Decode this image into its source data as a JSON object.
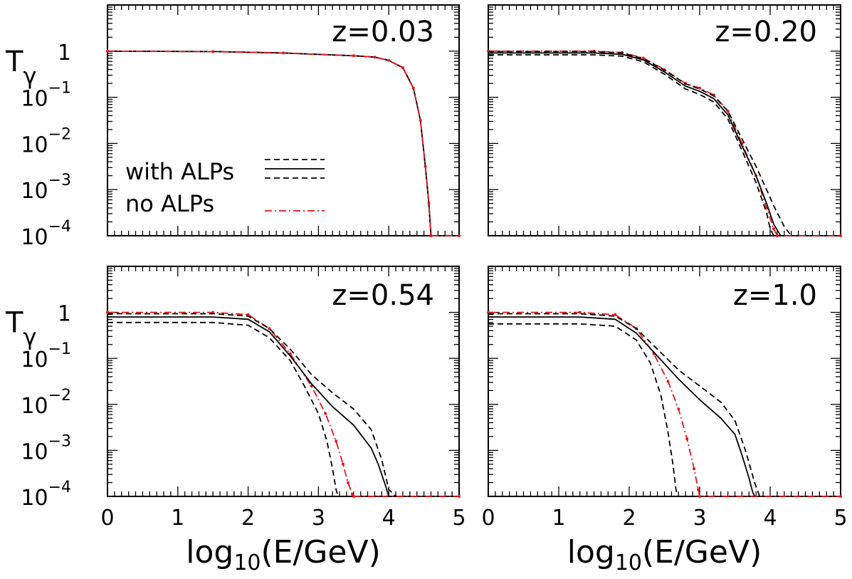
{
  "figure": {
    "ylabel_main": "T",
    "ylabel_sub": "γ",
    "xlabel_main": "log",
    "xlabel_sub": "10",
    "xlabel_rest": "(E/GeV)",
    "legend": {
      "with_alps": "with ALPs",
      "no_alps": "no ALPs"
    },
    "x_tick_labels": [
      "0",
      "1",
      "2",
      "3",
      "4",
      "5"
    ],
    "y_tick_labels": [
      {
        "base": "1",
        "exp": ""
      },
      {
        "base": "10",
        "exp": "−1"
      },
      {
        "base": "10",
        "exp": "−2"
      },
      {
        "base": "10",
        "exp": "−3"
      },
      {
        "base": "10",
        "exp": "−4"
      }
    ],
    "colors": {
      "with_alps": "#000000",
      "no_alps": "#e8141c"
    }
  },
  "chart_data": [
    {
      "type": "line",
      "title": "z=0.03",
      "xlim": [
        0,
        5
      ],
      "ylim": [
        -4,
        1
      ],
      "y_scale": "log10",
      "series": [
        {
          "name": "with ALPs",
          "style": "solid",
          "x": [
            0,
            1.5,
            2.5,
            3.5,
            3.8,
            4.0,
            4.2,
            4.35,
            4.45,
            4.52,
            4.57,
            4.6
          ],
          "y": [
            0,
            -0.01,
            -0.04,
            -0.1,
            -0.13,
            -0.2,
            -0.36,
            -0.8,
            -1.5,
            -2.5,
            -3.3,
            -4
          ]
        },
        {
          "name": "with ALPs",
          "style": "dashed",
          "x": [
            0,
            1.5,
            2.5,
            3.5,
            3.8,
            4.0,
            4.2,
            4.35,
            4.45,
            4.52,
            4.57,
            4.6
          ],
          "y": [
            0,
            -0.01,
            -0.04,
            -0.1,
            -0.13,
            -0.2,
            -0.36,
            -0.8,
            -1.5,
            -2.5,
            -3.3,
            -4
          ]
        },
        {
          "name": "no ALPs",
          "style": "dashdot",
          "x": [
            0,
            1.5,
            2.5,
            3.5,
            3.8,
            4.0,
            4.2,
            4.35,
            4.45,
            4.52,
            4.57,
            4.6,
            4.6,
            5
          ],
          "y": [
            0,
            -0.01,
            -0.04,
            -0.1,
            -0.13,
            -0.2,
            -0.36,
            -0.8,
            -1.5,
            -2.5,
            -3.3,
            -4,
            -4,
            -4
          ]
        }
      ]
    },
    {
      "type": "line",
      "title": "z=0.20",
      "xlim": [
        0,
        5
      ],
      "ylim": [
        -4,
        1
      ],
      "y_scale": "log10",
      "series": [
        {
          "name": "no ALPs",
          "style": "dashdot",
          "x": [
            0,
            1.5,
            1.9,
            2.2,
            2.5,
            2.8,
            3.0,
            3.2,
            3.4,
            3.6,
            3.8,
            3.95,
            4.05,
            4.1,
            4.1,
            5
          ],
          "y": [
            0,
            0,
            -0.03,
            -0.15,
            -0.4,
            -0.7,
            -0.8,
            -0.95,
            -1.3,
            -2.0,
            -2.7,
            -3.4,
            -3.85,
            -4,
            -4,
            -4
          ]
        },
        {
          "name": "with ALPs",
          "style": "solid",
          "x": [
            0,
            1.5,
            1.9,
            2.2,
            2.5,
            2.8,
            3.0,
            3.2,
            3.4,
            3.6,
            3.8,
            3.95,
            4.05,
            4.15,
            4.2
          ],
          "y": [
            -0.04,
            -0.04,
            -0.07,
            -0.19,
            -0.45,
            -0.76,
            -0.87,
            -1.03,
            -1.38,
            -2.05,
            -2.7,
            -3.3,
            -3.75,
            -4,
            -4
          ]
        },
        {
          "name": "with ALPs",
          "style": "dashed",
          "x": [
            0,
            1.5,
            1.9,
            2.2,
            2.5,
            2.8,
            3.0,
            3.2,
            3.4,
            3.6,
            3.8,
            3.95,
            4.05,
            4.2,
            4.3,
            4.35
          ],
          "y": [
            -0.01,
            -0.01,
            -0.04,
            -0.16,
            -0.41,
            -0.71,
            -0.82,
            -0.97,
            -1.3,
            -1.9,
            -2.5,
            -3.0,
            -3.35,
            -3.8,
            -4,
            -4
          ]
        },
        {
          "name": "with ALPs",
          "style": "dashed",
          "x": [
            0,
            1.5,
            1.9,
            2.2,
            2.5,
            2.8,
            3.0,
            3.2,
            3.4,
            3.6,
            3.8,
            3.95,
            4.0,
            4.05
          ],
          "y": [
            -0.08,
            -0.08,
            -0.11,
            -0.23,
            -0.5,
            -0.82,
            -0.94,
            -1.1,
            -1.47,
            -2.15,
            -2.85,
            -3.5,
            -3.85,
            -4
          ]
        }
      ]
    },
    {
      "type": "line",
      "title": "z=0.54",
      "xlim": [
        0,
        5
      ],
      "ylim": [
        -4,
        1
      ],
      "y_scale": "log10",
      "series": [
        {
          "name": "no ALPs",
          "style": "dashdot",
          "x": [
            0,
            1.5,
            2.0,
            2.3,
            2.6,
            2.9,
            3.1,
            3.25,
            3.35,
            3.42,
            3.48,
            3.5,
            3.5,
            5
          ],
          "y": [
            0,
            0,
            -0.05,
            -0.35,
            -0.9,
            -1.6,
            -2.2,
            -2.8,
            -3.3,
            -3.7,
            -3.95,
            -4,
            -4,
            -4
          ]
        },
        {
          "name": "with ALPs",
          "style": "solid",
          "x": [
            0,
            1.5,
            2.0,
            2.3,
            2.6,
            2.9,
            3.2,
            3.5,
            3.75,
            3.85,
            3.95,
            4.0,
            4.05
          ],
          "y": [
            -0.1,
            -0.1,
            -0.15,
            -0.42,
            -0.95,
            -1.55,
            -2.05,
            -2.45,
            -2.95,
            -3.3,
            -3.75,
            -4,
            -4
          ]
        },
        {
          "name": "with ALPs",
          "style": "dashed",
          "x": [
            0,
            1.5,
            2.0,
            2.3,
            2.6,
            2.9,
            3.2,
            3.5,
            3.75,
            3.9,
            4.0,
            4.1
          ],
          "y": [
            -0.03,
            -0.03,
            -0.08,
            -0.35,
            -0.8,
            -1.35,
            -1.75,
            -2.1,
            -2.55,
            -3.2,
            -3.85,
            -4
          ]
        },
        {
          "name": "with ALPs",
          "style": "dashed",
          "x": [
            0,
            1.5,
            2.0,
            2.3,
            2.6,
            2.8,
            3.0,
            3.12,
            3.2,
            3.25,
            3.28
          ],
          "y": [
            -0.22,
            -0.22,
            -0.28,
            -0.55,
            -1.05,
            -1.6,
            -2.2,
            -2.8,
            -3.4,
            -3.85,
            -4
          ]
        }
      ]
    },
    {
      "type": "line",
      "title": "z=1.0",
      "xlim": [
        0,
        5
      ],
      "ylim": [
        -4,
        1
      ],
      "y_scale": "log10",
      "series": [
        {
          "name": "no ALPs",
          "style": "dashdot",
          "x": [
            0,
            1.3,
            1.8,
            2.1,
            2.35,
            2.55,
            2.7,
            2.82,
            2.92,
            2.98,
            3.0,
            3.0,
            5
          ],
          "y": [
            0,
            0,
            -0.05,
            -0.35,
            -0.9,
            -1.5,
            -2.1,
            -2.75,
            -3.4,
            -3.85,
            -4,
            -4,
            -4
          ]
        },
        {
          "name": "with ALPs",
          "style": "solid",
          "x": [
            0,
            1.3,
            1.8,
            2.1,
            2.4,
            2.7,
            3.0,
            3.3,
            3.5,
            3.6,
            3.7,
            3.75,
            3.78
          ],
          "y": [
            -0.1,
            -0.1,
            -0.15,
            -0.45,
            -0.95,
            -1.45,
            -1.9,
            -2.3,
            -2.65,
            -3.1,
            -3.6,
            -3.9,
            -4
          ]
        },
        {
          "name": "with ALPs",
          "style": "dashed",
          "x": [
            0,
            1.3,
            1.8,
            2.1,
            2.4,
            2.7,
            3.0,
            3.3,
            3.5,
            3.65,
            3.78,
            3.85
          ],
          "y": [
            -0.03,
            -0.03,
            -0.08,
            -0.35,
            -0.8,
            -1.25,
            -1.6,
            -1.95,
            -2.35,
            -3.0,
            -3.7,
            -4
          ]
        },
        {
          "name": "with ALPs",
          "style": "dashed",
          "x": [
            0,
            1.3,
            1.8,
            2.1,
            2.3,
            2.45,
            2.55,
            2.62,
            2.66,
            2.68
          ],
          "y": [
            -0.25,
            -0.25,
            -0.3,
            -0.6,
            -1.1,
            -1.8,
            -2.6,
            -3.3,
            -3.8,
            -4
          ]
        }
      ]
    }
  ]
}
